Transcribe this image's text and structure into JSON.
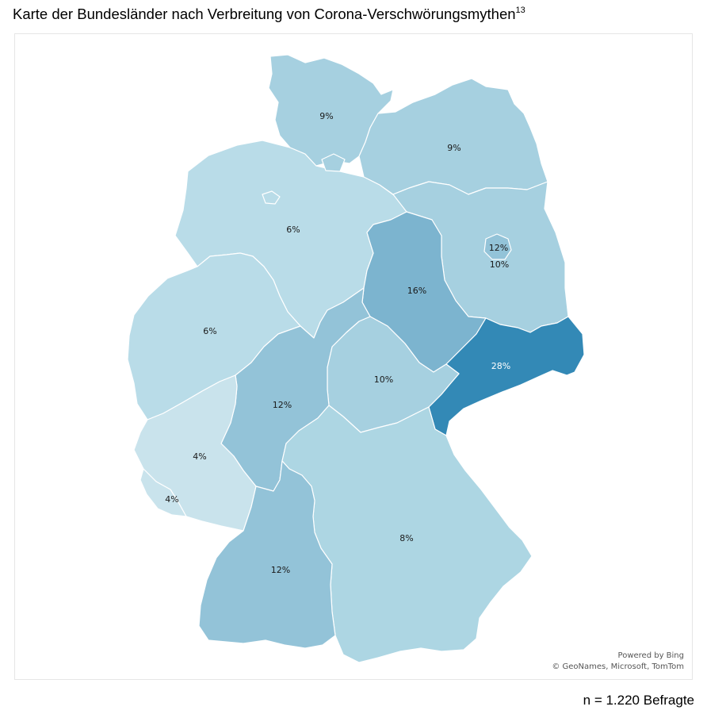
{
  "title": {
    "text": "Karte der Bundesländer nach Verbreitung von Corona-Verschwörungsmythen",
    "footnote": "13"
  },
  "colors": {
    "lightest": "#c9e3ec",
    "light": "#b9dce8",
    "mid_light": "#a6d0e0",
    "mid": "#93c3d8",
    "medium": "#7cb4cf",
    "dark": "#3389b6"
  },
  "states": [
    {
      "id": "schleswig-holstein",
      "label": "9%",
      "color": "#a6d0e0"
    },
    {
      "id": "mecklenburg-vorpommern",
      "label": "9%",
      "color": "#a6d0e0"
    },
    {
      "id": "niedersachsen",
      "label": "6%",
      "color": "#b9dce8"
    },
    {
      "id": "bremen",
      "label": "",
      "color": "#b9dce8"
    },
    {
      "id": "hamburg",
      "label": "",
      "color": "#a6d0e0"
    },
    {
      "id": "berlin",
      "label": "12%",
      "color": "#93c3d8"
    },
    {
      "id": "brandenburg",
      "label": "10%",
      "color": "#a6d0e0"
    },
    {
      "id": "sachsen-anhalt",
      "label": "16%",
      "color": "#7cb4cf"
    },
    {
      "id": "nordrhein-westfalen",
      "label": "6%",
      "color": "#b9dce8"
    },
    {
      "id": "sachsen",
      "label": "28%",
      "color": "#3389b6"
    },
    {
      "id": "thueringen",
      "label": "10%",
      "color": "#a6d0e0"
    },
    {
      "id": "hessen",
      "label": "12%",
      "color": "#93c3d8"
    },
    {
      "id": "rheinland-pfalz",
      "label": "4%",
      "color": "#c9e3ec"
    },
    {
      "id": "saarland",
      "label": "4%",
      "color": "#c9e3ec"
    },
    {
      "id": "bayern",
      "label": "8%",
      "color": "#add6e3"
    },
    {
      "id": "baden-wuerttemberg",
      "label": "12%",
      "color": "#93c3d8"
    }
  ],
  "attribution": {
    "line1": "Powered by Bing",
    "line2": "© GeoNames, Microsoft, TomTom"
  },
  "footer": "n = 1.220 Befragte"
}
